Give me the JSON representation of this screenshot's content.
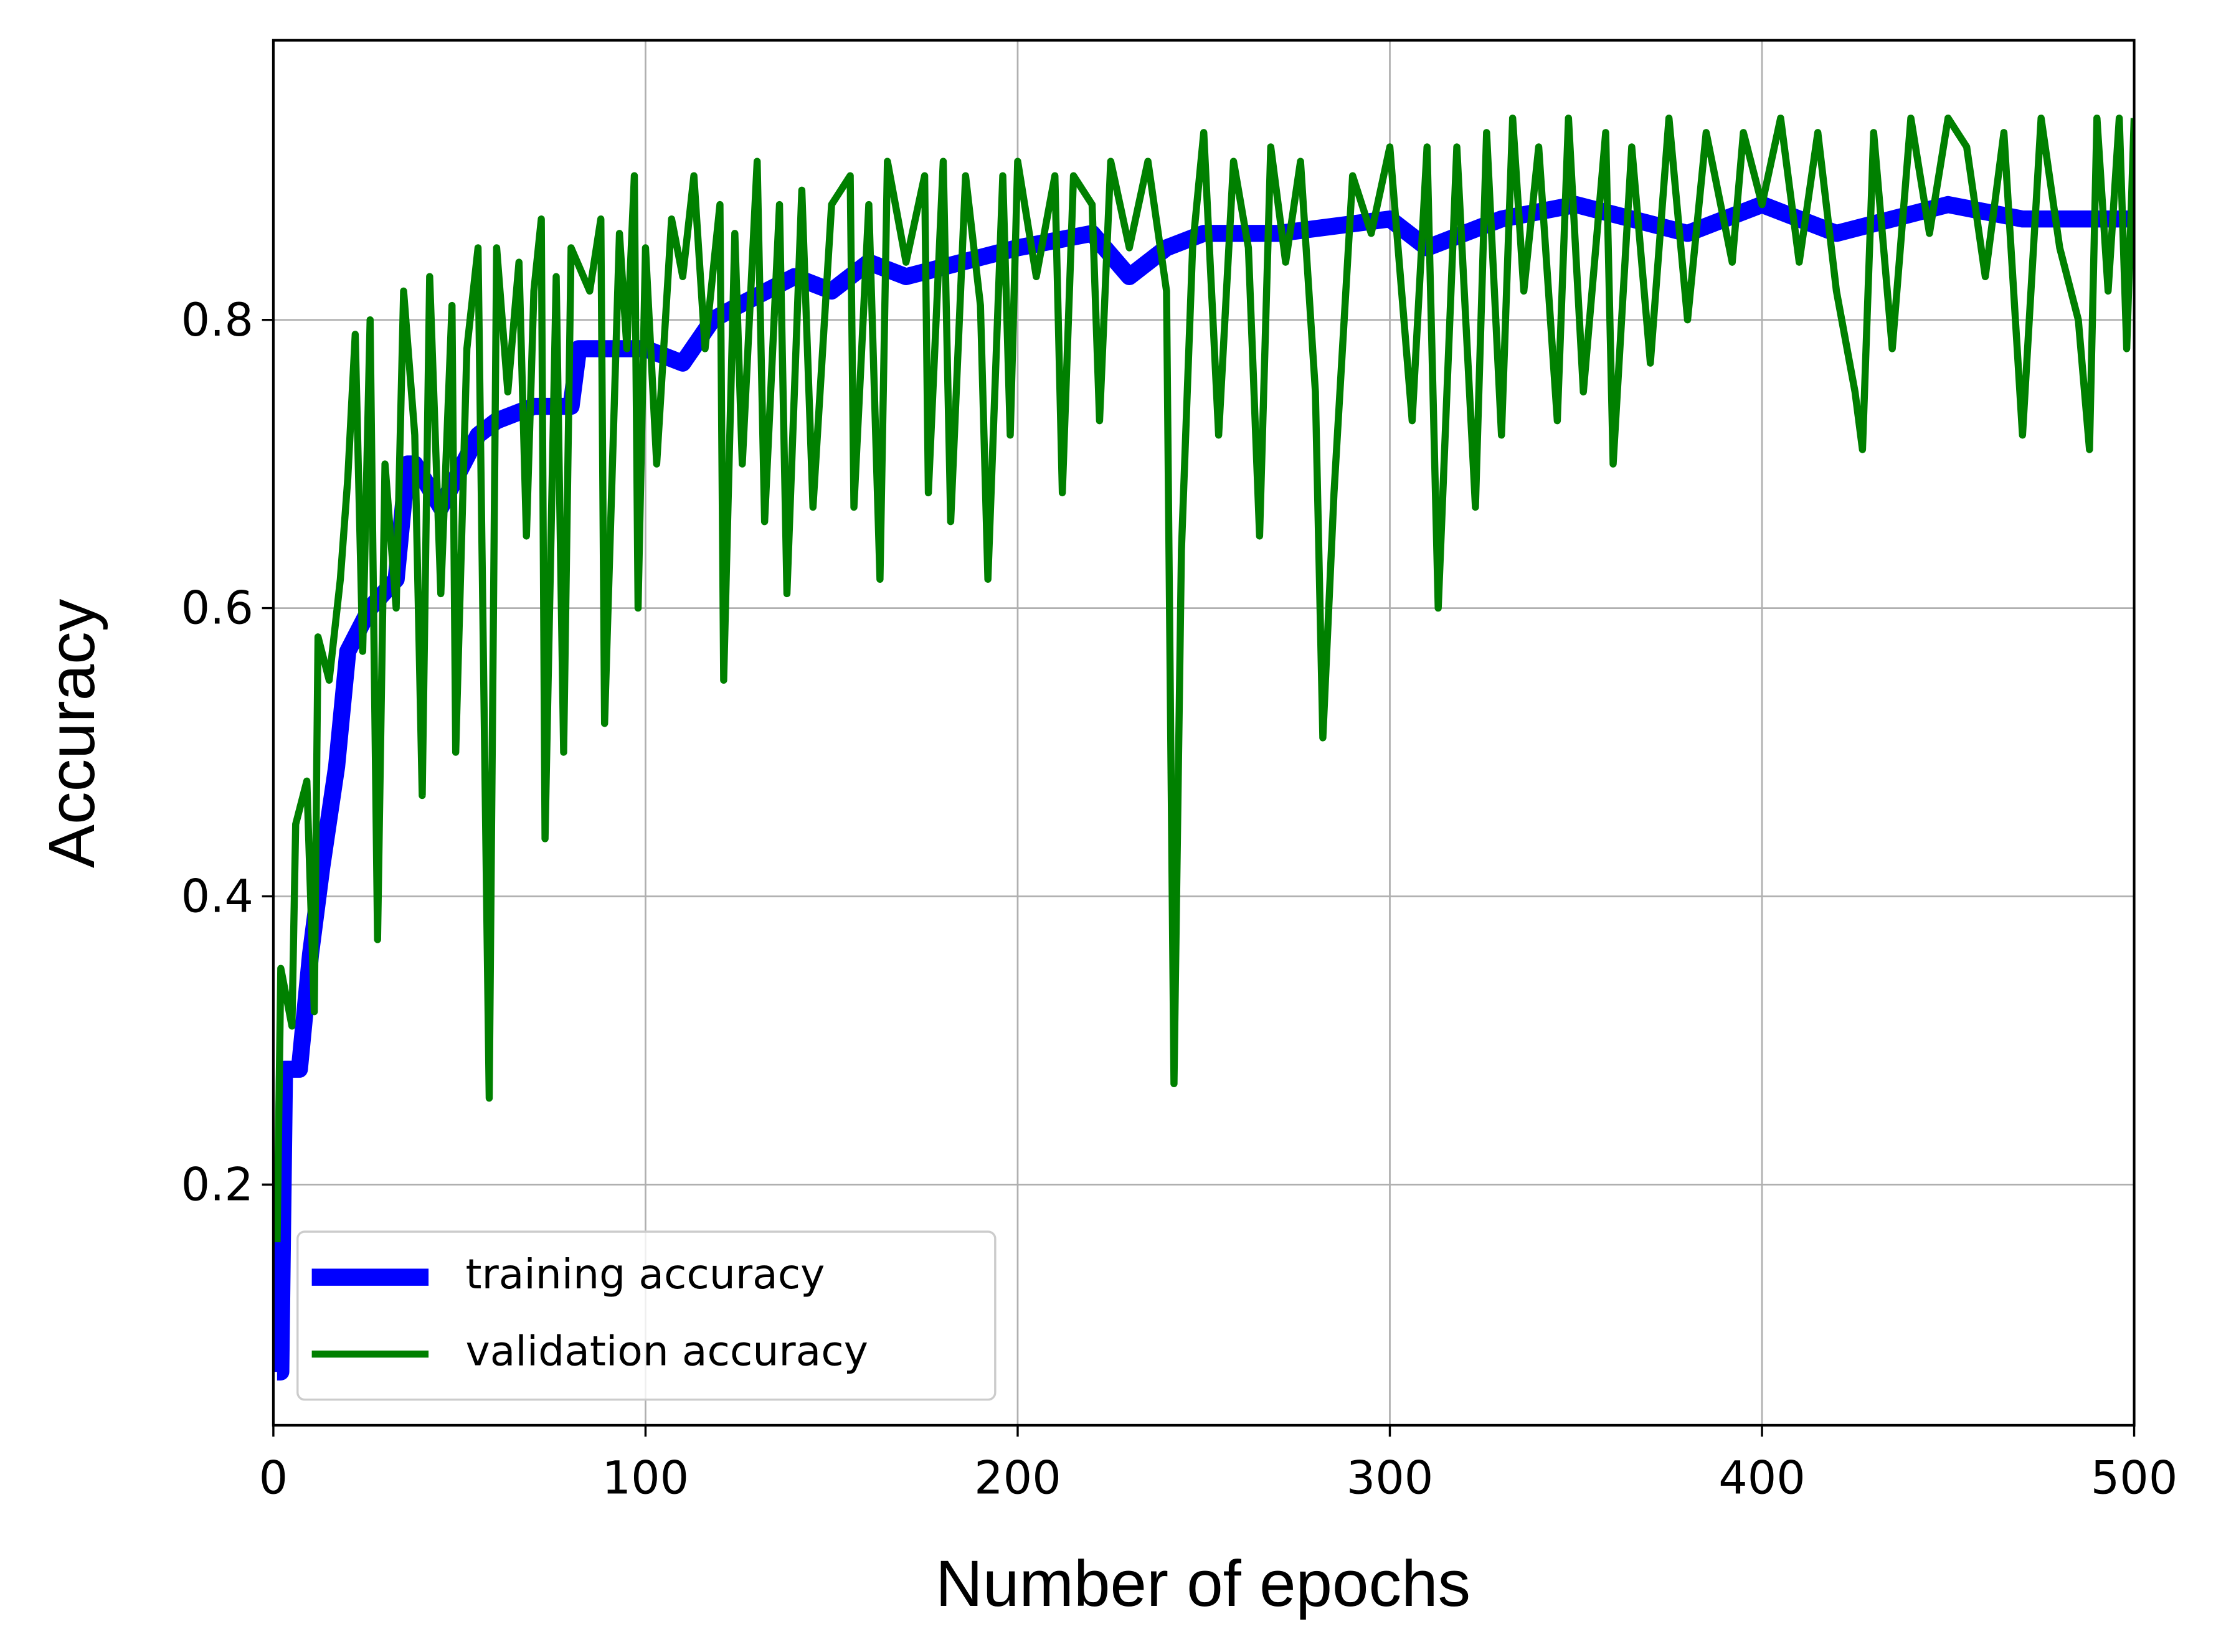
{
  "chart_data": {
    "type": "line",
    "x_label": "Number of epochs",
    "y_label": "Accuracy",
    "xlim": [
      0,
      500
    ],
    "xticks": [
      0,
      100,
      200,
      300,
      400,
      500
    ],
    "ylim": [
      0.033,
      0.994
    ],
    "yticks": [
      0.2,
      0.4,
      0.6,
      0.8
    ],
    "grid": true,
    "legend_position": "lower left",
    "series": [
      {
        "name": "training accuracy",
        "color": "#0000ff",
        "width": 12,
        "x": [
          1,
          2,
          3,
          7,
          10,
          13,
          17,
          20,
          26,
          33,
          36,
          38,
          45,
          55,
          60,
          70,
          80,
          82,
          85,
          100,
          110,
          118,
          125,
          140,
          150,
          160,
          170,
          200,
          220,
          230,
          240,
          250,
          270,
          300,
          310,
          330,
          350,
          380,
          400,
          420,
          450,
          470,
          500
        ],
        "values": [
          0.07,
          0.07,
          0.28,
          0.28,
          0.36,
          0.42,
          0.49,
          0.57,
          0.6,
          0.62,
          0.7,
          0.7,
          0.67,
          0.72,
          0.73,
          0.74,
          0.74,
          0.78,
          0.78,
          0.78,
          0.77,
          0.8,
          0.81,
          0.83,
          0.82,
          0.84,
          0.83,
          0.85,
          0.86,
          0.83,
          0.85,
          0.86,
          0.86,
          0.87,
          0.85,
          0.87,
          0.88,
          0.86,
          0.88,
          0.86,
          0.88,
          0.87,
          0.87
        ]
      },
      {
        "name": "validation accuracy",
        "color": "#008000",
        "width": 5,
        "x": [
          1,
          2,
          5,
          6,
          9,
          11,
          12,
          15,
          18,
          20,
          22,
          24,
          26,
          28,
          30,
          33,
          35,
          38,
          40,
          42,
          45,
          48,
          49,
          52,
          55,
          58,
          60,
          63,
          66,
          68,
          70,
          72,
          73,
          76,
          78,
          80,
          85,
          88,
          89,
          93,
          95,
          97,
          98,
          100,
          103,
          107,
          110,
          113,
          116,
          120,
          121,
          124,
          126,
          130,
          132,
          136,
          138,
          142,
          145,
          150,
          155,
          156,
          160,
          163,
          165,
          170,
          175,
          176,
          180,
          182,
          186,
          190,
          192,
          196,
          198,
          200,
          205,
          210,
          212,
          215,
          220,
          222,
          225,
          230,
          235,
          240,
          242,
          244,
          247,
          250,
          254,
          258,
          262,
          265,
          268,
          272,
          276,
          280,
          282,
          285,
          290,
          295,
          300,
          306,
          310,
          313,
          318,
          323,
          326,
          330,
          333,
          336,
          340,
          345,
          348,
          352,
          358,
          360,
          365,
          370,
          375,
          380,
          385,
          392,
          395,
          400,
          405,
          410,
          415,
          420,
          425,
          427,
          430,
          435,
          440,
          445,
          450,
          455,
          460,
          465,
          470,
          475,
          480,
          485,
          488,
          490,
          493,
          496,
          498,
          500
        ],
        "values": [
          0.16,
          0.35,
          0.31,
          0.45,
          0.48,
          0.32,
          0.58,
          0.55,
          0.62,
          0.69,
          0.79,
          0.57,
          0.8,
          0.37,
          0.7,
          0.6,
          0.82,
          0.72,
          0.47,
          0.83,
          0.61,
          0.81,
          0.5,
          0.78,
          0.85,
          0.26,
          0.85,
          0.75,
          0.84,
          0.65,
          0.82,
          0.87,
          0.44,
          0.83,
          0.5,
          0.85,
          0.82,
          0.87,
          0.52,
          0.86,
          0.78,
          0.9,
          0.6,
          0.85,
          0.7,
          0.87,
          0.83,
          0.9,
          0.78,
          0.88,
          0.55,
          0.86,
          0.7,
          0.91,
          0.66,
          0.88,
          0.61,
          0.89,
          0.67,
          0.88,
          0.9,
          0.67,
          0.88,
          0.62,
          0.91,
          0.84,
          0.9,
          0.68,
          0.91,
          0.66,
          0.9,
          0.81,
          0.62,
          0.9,
          0.72,
          0.91,
          0.83,
          0.9,
          0.68,
          0.9,
          0.88,
          0.73,
          0.91,
          0.85,
          0.91,
          0.82,
          0.27,
          0.64,
          0.85,
          0.93,
          0.72,
          0.91,
          0.85,
          0.65,
          0.92,
          0.84,
          0.91,
          0.75,
          0.51,
          0.68,
          0.9,
          0.86,
          0.92,
          0.73,
          0.92,
          0.6,
          0.92,
          0.67,
          0.93,
          0.72,
          0.94,
          0.82,
          0.92,
          0.73,
          0.94,
          0.75,
          0.93,
          0.7,
          0.92,
          0.77,
          0.94,
          0.8,
          0.93,
          0.84,
          0.93,
          0.88,
          0.94,
          0.84,
          0.93,
          0.82,
          0.75,
          0.71,
          0.93,
          0.78,
          0.94,
          0.86,
          0.94,
          0.92,
          0.83,
          0.93,
          0.72,
          0.94,
          0.85,
          0.8,
          0.71,
          0.94,
          0.82,
          0.94,
          0.78,
          0.94
        ]
      }
    ]
  }
}
